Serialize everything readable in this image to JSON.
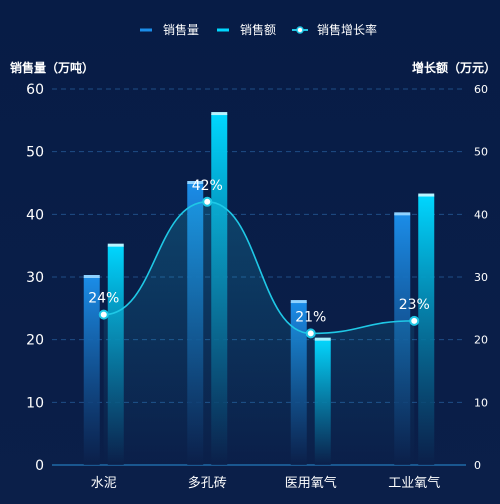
{
  "legend": {
    "sales_volume": "销售量",
    "sales_amount": "销售额",
    "growth_rate": "销售增长率"
  },
  "axes": {
    "left_title": "销售量（万吨）",
    "right_title": "增长额（万元）"
  },
  "colors": {
    "background": "#0b1f49",
    "bar_volume": "#1b8de8",
    "bar_amount": "#00d7ff",
    "line": "#1fc8e6",
    "grid": "#1f4d86",
    "text": "#ffffff"
  },
  "chart_data": {
    "type": "bar",
    "categories": [
      "水泥",
      "多孔砖",
      "医用氧气",
      "工业氧气"
    ],
    "series": [
      {
        "name": "销售量",
        "values": [
          30,
          45,
          26,
          40
        ],
        "axis": "left"
      },
      {
        "name": "销售额",
        "values": [
          35,
          56,
          20,
          43
        ],
        "axis": "right"
      },
      {
        "name": "销售增长率",
        "type": "line",
        "values": [
          24,
          42,
          21,
          23
        ],
        "labels": [
          "24%",
          "42%",
          "21%",
          "23%"
        ]
      }
    ],
    "ylim": [
      0,
      60
    ],
    "y2lim": [
      0,
      60
    ],
    "yticks": [
      0,
      10,
      20,
      30,
      40,
      50,
      60
    ],
    "grid": true,
    "legend_position": "top"
  }
}
